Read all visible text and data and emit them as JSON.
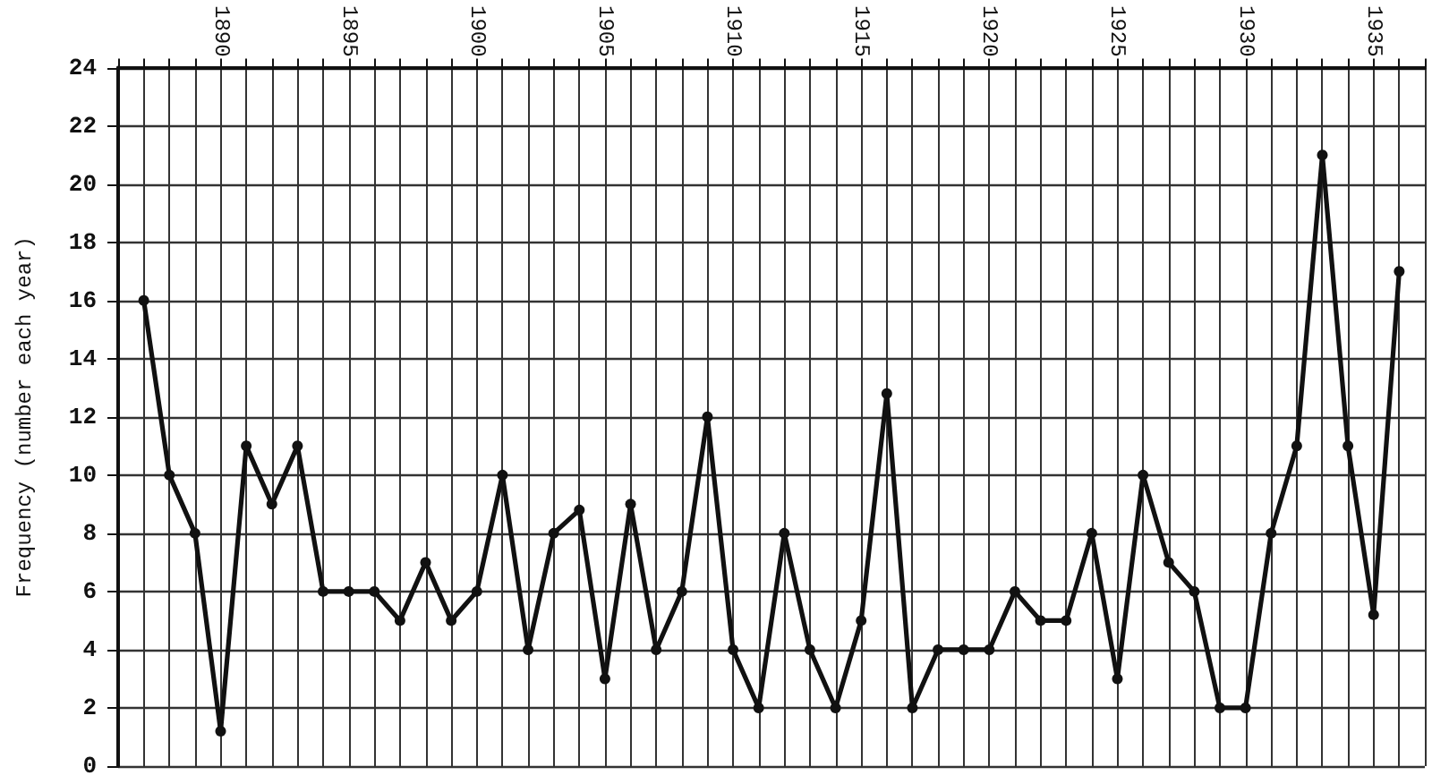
{
  "chart_data": {
    "type": "line",
    "ylabel": "Frequency (number each year)",
    "x": [
      1887,
      1888,
      1889,
      1890,
      1891,
      1892,
      1893,
      1894,
      1895,
      1896,
      1897,
      1898,
      1899,
      1900,
      1901,
      1902,
      1903,
      1904,
      1905,
      1906,
      1907,
      1908,
      1909,
      1910,
      1911,
      1912,
      1913,
      1914,
      1915,
      1916,
      1917,
      1918,
      1919,
      1920,
      1921,
      1922,
      1923,
      1924,
      1925,
      1926,
      1927,
      1928,
      1929,
      1930,
      1931,
      1932,
      1933,
      1934,
      1935,
      1936
    ],
    "series": [
      {
        "color": "#111111",
        "values": [
          16,
          10,
          8,
          1.2,
          11,
          9,
          11,
          6,
          6,
          6,
          5,
          7,
          5,
          6,
          10,
          4,
          8,
          8.8,
          3,
          9,
          4,
          6,
          12,
          4,
          2,
          8,
          4,
          2,
          5,
          12.8,
          2,
          4,
          4,
          4,
          6,
          5,
          5,
          8,
          3,
          10,
          7,
          6,
          2,
          2,
          8,
          11,
          21,
          11,
          5.2,
          17
        ]
      }
    ],
    "xlim": [
      1886,
      1937
    ],
    "xticks": [
      {
        "value": 1886,
        "label": null
      },
      {
        "value": 1887,
        "label": null
      },
      {
        "value": 1888,
        "label": null
      },
      {
        "value": 1889,
        "label": null
      },
      1890,
      {
        "value": 1891,
        "label": null
      },
      {
        "value": 1892,
        "label": null
      },
      {
        "value": 1893,
        "label": null
      },
      {
        "value": 1894,
        "label": null
      },
      1895,
      {
        "value": 1896,
        "label": null
      },
      {
        "value": 1897,
        "label": null
      },
      {
        "value": 1898,
        "label": null
      },
      {
        "value": 1899,
        "label": null
      },
      1900,
      {
        "value": 1901,
        "label": null
      },
      {
        "value": 1902,
        "label": null
      },
      {
        "value": 1903,
        "label": null
      },
      {
        "value": 1904,
        "label": null
      },
      1905,
      {
        "value": 1906,
        "label": null
      },
      {
        "value": 1907,
        "label": null
      },
      {
        "value": 1908,
        "label": null
      },
      {
        "value": 1909,
        "label": null
      },
      1910,
      {
        "value": 1911,
        "label": null
      },
      {
        "value": 1912,
        "label": null
      },
      {
        "value": 1913,
        "label": null
      },
      {
        "value": 1914,
        "label": null
      },
      1915,
      {
        "value": 1916,
        "label": null
      },
      {
        "value": 1917,
        "label": null
      },
      {
        "value": 1918,
        "label": null
      },
      {
        "value": 1919,
        "label": null
      },
      1920,
      {
        "value": 1921,
        "label": null
      },
      {
        "value": 1922,
        "label": null
      },
      {
        "value": 1923,
        "label": null
      },
      {
        "value": 1924,
        "label": null
      },
      1925,
      {
        "value": 1926,
        "label": null
      },
      {
        "value": 1927,
        "label": null
      },
      {
        "value": 1928,
        "label": null
      },
      {
        "value": 1929,
        "label": null
      },
      1930,
      {
        "value": 1931,
        "label": null
      },
      {
        "value": 1932,
        "label": null
      },
      {
        "value": 1933,
        "label": null
      },
      {
        "value": 1934,
        "label": null
      },
      1935,
      {
        "value": 1936,
        "label": null
      },
      {
        "value": 1937,
        "label": null
      }
    ],
    "ylim": [
      0,
      24
    ],
    "yticks": [
      0,
      2,
      4,
      6,
      8,
      10,
      12,
      14,
      16,
      18,
      20,
      22,
      24
    ],
    "grid": true,
    "marker": "circle",
    "line_style": "solid"
  }
}
